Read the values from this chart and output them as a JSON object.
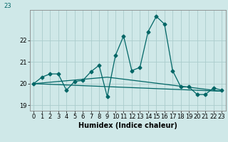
{
  "title_partial": "23",
  "xlabel": "Humidex (Indice chaleur)",
  "background_color": "#cfe8e8",
  "line_color": "#006666",
  "grid_color": "#aacccc",
  "xlim": [
    -0.5,
    23.5
  ],
  "ylim": [
    18.75,
    23.4
  ],
  "yticks": [
    19,
    20,
    21,
    22
  ],
  "xtick_labels": [
    "0",
    "1",
    "2",
    "3",
    "4",
    "5",
    "6",
    "7",
    "8",
    "9",
    "10",
    "11",
    "12",
    "13",
    "14",
    "15",
    "16",
    "17",
    "18",
    "19",
    "20",
    "21",
    "22",
    "23"
  ],
  "series1_x": [
    0,
    1,
    2,
    3,
    4,
    5,
    6,
    7,
    8,
    9,
    10,
    11,
    12,
    13,
    14,
    15,
    16,
    17,
    18,
    19,
    20,
    21,
    22,
    23
  ],
  "series1_y": [
    20.0,
    20.3,
    20.45,
    20.45,
    19.7,
    20.1,
    20.15,
    20.55,
    20.85,
    19.4,
    21.3,
    22.2,
    20.6,
    20.75,
    22.4,
    23.1,
    22.75,
    20.6,
    19.85,
    19.85,
    19.5,
    19.5,
    19.8,
    19.7
  ],
  "series2_x": [
    0,
    9,
    23
  ],
  "series2_y": [
    20.0,
    20.3,
    19.65
  ],
  "series3_x": [
    0,
    23
  ],
  "series3_y": [
    20.0,
    19.65
  ],
  "tick_fontsize": 6.0,
  "label_fontsize": 7.0
}
